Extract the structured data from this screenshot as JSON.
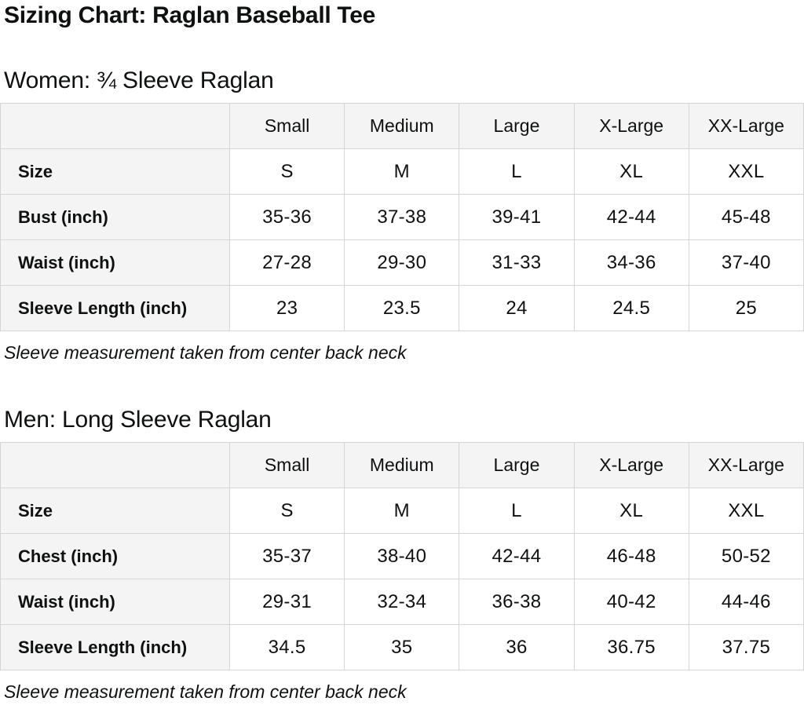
{
  "page": {
    "title": "Sizing Chart: Raglan Baseball Tee"
  },
  "colors": {
    "header_cell_bg": "#f4f4f4",
    "table_border": "#d5d5d5",
    "text": "#0f1111",
    "page_bg": "#ffffff"
  },
  "sections": [
    {
      "heading": "Women: ¾ Sleeve Raglan",
      "note": "Sleeve measurement taken from center back neck",
      "table": {
        "columns": [
          "Small",
          "Medium",
          "Large",
          "X-Large",
          "XX-Large"
        ],
        "rows": [
          {
            "label": "Size",
            "values": [
              "S",
              "M",
              "L",
              "XL",
              "XXL"
            ]
          },
          {
            "label": "Bust (inch)",
            "values": [
              "35-36",
              "37-38",
              "39-41",
              "42-44",
              "45-48"
            ]
          },
          {
            "label": "Waist (inch)",
            "values": [
              "27-28",
              "29-30",
              "31-33",
              "34-36",
              "37-40"
            ]
          },
          {
            "label": "Sleeve Length (inch)",
            "values": [
              "23",
              "23.5",
              "24",
              "24.5",
              "25"
            ]
          }
        ]
      }
    },
    {
      "heading": "Men: Long Sleeve Raglan",
      "note": "Sleeve measurement taken from center back neck",
      "table": {
        "columns": [
          "Small",
          "Medium",
          "Large",
          "X-Large",
          "XX-Large"
        ],
        "rows": [
          {
            "label": "Size",
            "values": [
              "S",
              "M",
              "L",
              "XL",
              "XXL"
            ]
          },
          {
            "label": "Chest (inch)",
            "values": [
              "35-37",
              "38-40",
              "42-44",
              "46-48",
              "50-52"
            ]
          },
          {
            "label": "Waist (inch)",
            "values": [
              "29-31",
              "32-34",
              "36-38",
              "40-42",
              "44-46"
            ]
          },
          {
            "label": "Sleeve Length (inch)",
            "values": [
              "34.5",
              "35",
              "36",
              "36.75",
              "37.75"
            ]
          }
        ]
      }
    }
  ]
}
